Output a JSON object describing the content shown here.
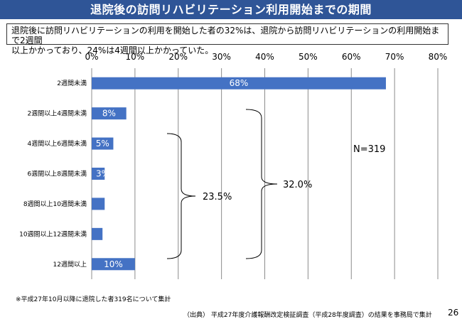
{
  "title": "退院後の訪問リハビリテーション利用開始までの期間",
  "summary": {
    "line1": "退院後に訪問リハビリテーションの利用を開始した者の32%は、退院から訪問リハビリテーションの利用開始まで2週間",
    "line2": "以上かかっており、24%は4週間以上かかっていた。"
  },
  "chart_data": {
    "type": "bar",
    "orientation": "horizontal",
    "categories": [
      "2週間未満",
      "2週間以上4週間未満",
      "4週間以上6週間未満",
      "6週間以上8週間未満",
      "8週間以上10週間未満",
      "10週間以上12週間未満",
      "12週間以上"
    ],
    "values": [
      68,
      8,
      5,
      3,
      3,
      2.5,
      10
    ],
    "data_labels": [
      "68%",
      "8%",
      "5%",
      "3%",
      "",
      "",
      "10%"
    ],
    "xlim": [
      0,
      80
    ],
    "xticks": [
      0,
      10,
      20,
      30,
      40,
      50,
      60,
      70,
      80
    ],
    "xtick_labels": [
      "0%",
      "10%",
      "20%",
      "30%",
      "40%",
      "50%",
      "60%",
      "70%",
      "80%"
    ],
    "grid": "vertical",
    "bar_color": "#4472c4",
    "annotations": {
      "n": "N=319",
      "brace_4plus": "23.5%",
      "brace_2plus": "32.0%"
    }
  },
  "footnote": "※平成27年10月以降に退院した者319名について集計",
  "source": "（出典） 平成27年度介護報酬改定検証調査（平成28年度調査）の結果を事務局で集計",
  "page_number": "26"
}
